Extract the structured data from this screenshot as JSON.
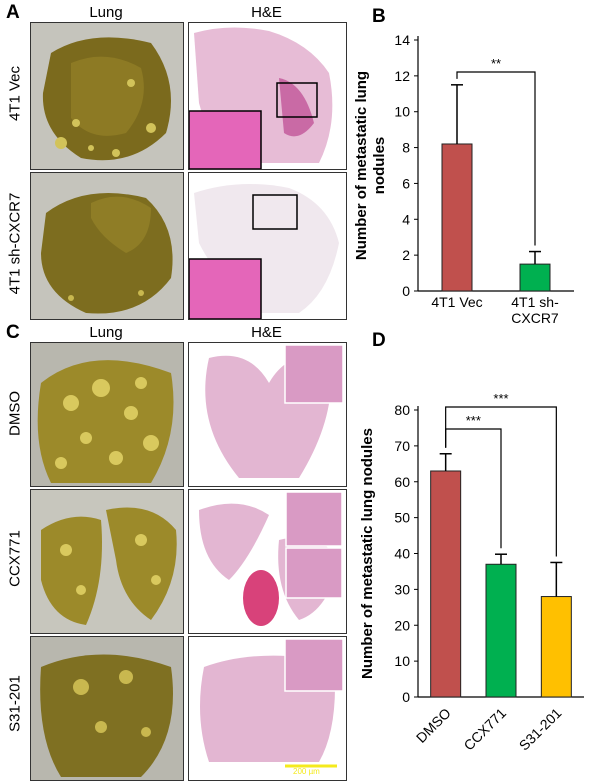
{
  "panels": {
    "A": "A",
    "B": "B",
    "C": "C",
    "D": "D"
  },
  "column_headers": {
    "lung": "Lung",
    "he": "H&E"
  },
  "panel_a_rows": [
    "4T1 Vec",
    "4T1 sh-CXCR7"
  ],
  "panel_c_rows": [
    "DMSO",
    "CCX771",
    "S31-201"
  ],
  "scale_bar_label": "200 µm",
  "chart_data": [
    {
      "type": "bar",
      "panel": "B",
      "categories": [
        "4T1 Vec",
        "4T1 sh-CXCR7"
      ],
      "category_lines": [
        [
          "4T1 Vec"
        ],
        [
          "4T1 sh-",
          "CXCR7"
        ]
      ],
      "values": [
        8.2,
        1.5
      ],
      "errors": [
        3.3,
        0.7
      ],
      "colors": [
        "#c0504d",
        "#00b050"
      ],
      "ylabel": "Number of metastatic lung nodules",
      "ylabel_lines": [
        "Number of metastatic lung",
        "nodules"
      ],
      "ylim": [
        0,
        14
      ],
      "yticks": [
        0,
        2,
        4,
        6,
        8,
        10,
        12,
        14
      ],
      "significance": [
        {
          "from": 0,
          "to": 1,
          "label": "**"
        }
      ],
      "grid": false
    },
    {
      "type": "bar",
      "panel": "D",
      "categories": [
        "DMSO",
        "CCX771",
        "S31-201"
      ],
      "values": [
        63,
        37,
        28
      ],
      "errors": [
        4.8,
        2.8,
        9.5
      ],
      "colors": [
        "#c0504d",
        "#00b050",
        "#ffc000"
      ],
      "ylabel": "Number of metastatic lung nodules",
      "ylim": [
        0,
        80
      ],
      "yticks": [
        0,
        10,
        20,
        30,
        40,
        50,
        60,
        70,
        80
      ],
      "significance": [
        {
          "from": 0,
          "to": 1,
          "label": "***"
        },
        {
          "from": 0,
          "to": 2,
          "label": "***"
        }
      ],
      "grid": false
    }
  ]
}
